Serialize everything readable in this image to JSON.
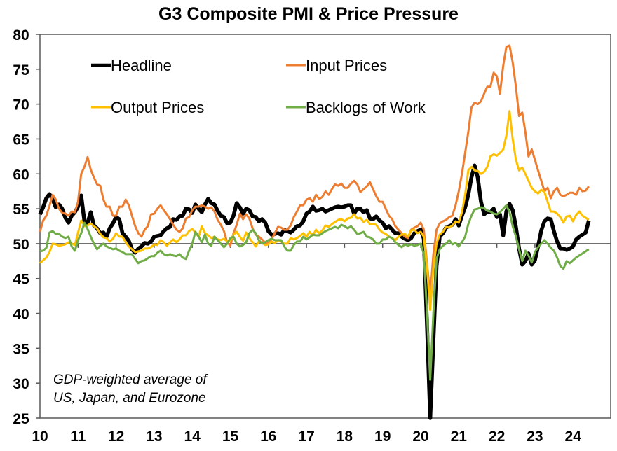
{
  "chart_data": {
    "type": "line",
    "title": "G3 Composite PMI & Price Pressure",
    "xlabel": "",
    "ylabel": "",
    "ylim": [
      25,
      80
    ],
    "yticks": [
      25,
      30,
      35,
      40,
      45,
      50,
      55,
      60,
      65,
      70,
      75,
      80
    ],
    "xlim": [
      2010.0,
      2025.0
    ],
    "xtick_labels": [
      "10",
      "11",
      "12",
      "13",
      "14",
      "15",
      "16",
      "17",
      "18",
      "19",
      "20",
      "21",
      "22",
      "23",
      "24"
    ],
    "reference_line": 50,
    "grid": false,
    "legend": {
      "placement": "top-left",
      "entries": [
        "Headline",
        "Input Prices",
        "Output Prices",
        "Backlogs of Work"
      ]
    },
    "annotation": [
      "GDP-weighted average of",
      "US, Japan, and Eurozone"
    ],
    "x": [
      2010.0,
      2010.083,
      2010.167,
      2010.25,
      2010.333,
      2010.417,
      2010.5,
      2010.583,
      2010.667,
      2010.75,
      2010.833,
      2010.917,
      2011.0,
      2011.083,
      2011.167,
      2011.25,
      2011.333,
      2011.417,
      2011.5,
      2011.583,
      2011.667,
      2011.75,
      2011.833,
      2011.917,
      2012.0,
      2012.083,
      2012.167,
      2012.25,
      2012.333,
      2012.417,
      2012.5,
      2012.583,
      2012.667,
      2012.75,
      2012.833,
      2012.917,
      2013.0,
      2013.083,
      2013.167,
      2013.25,
      2013.333,
      2013.417,
      2013.5,
      2013.583,
      2013.667,
      2013.75,
      2013.833,
      2013.917,
      2014.0,
      2014.083,
      2014.167,
      2014.25,
      2014.333,
      2014.417,
      2014.5,
      2014.583,
      2014.667,
      2014.75,
      2014.833,
      2014.917,
      2015.0,
      2015.083,
      2015.167,
      2015.25,
      2015.333,
      2015.417,
      2015.5,
      2015.583,
      2015.667,
      2015.75,
      2015.833,
      2015.917,
      2016.0,
      2016.083,
      2016.167,
      2016.25,
      2016.333,
      2016.417,
      2016.5,
      2016.583,
      2016.667,
      2016.75,
      2016.833,
      2016.917,
      2017.0,
      2017.083,
      2017.167,
      2017.25,
      2017.333,
      2017.417,
      2017.5,
      2017.583,
      2017.667,
      2017.75,
      2017.833,
      2017.917,
      2018.0,
      2018.083,
      2018.167,
      2018.25,
      2018.333,
      2018.417,
      2018.5,
      2018.583,
      2018.667,
      2018.75,
      2018.833,
      2018.917,
      2019.0,
      2019.083,
      2019.167,
      2019.25,
      2019.333,
      2019.417,
      2019.5,
      2019.583,
      2019.667,
      2019.75,
      2019.833,
      2019.917,
      2020.0,
      2020.083,
      2020.167,
      2020.25,
      2020.333,
      2020.417,
      2020.5,
      2020.583,
      2020.667,
      2020.75,
      2020.833,
      2020.917,
      2021.0,
      2021.083,
      2021.167,
      2021.25,
      2021.333,
      2021.417,
      2021.5,
      2021.583,
      2021.667,
      2021.75,
      2021.833,
      2021.917,
      2022.0,
      2022.083,
      2022.167,
      2022.25,
      2022.333,
      2022.417,
      2022.5,
      2022.583,
      2022.667,
      2022.75,
      2022.833,
      2022.917,
      2023.0,
      2023.083,
      2023.167,
      2023.25,
      2023.333,
      2023.417,
      2023.5,
      2023.583,
      2023.667,
      2023.75,
      2023.833,
      2023.917,
      2024.0,
      2024.083,
      2024.167,
      2024.25,
      2024.333,
      2024.417
    ],
    "series": [
      {
        "name": "Headline",
        "color": "#000000",
        "values": [
          54.2,
          55.2,
          56.5,
          57.1,
          56.3,
          55.2,
          55.6,
          55.0,
          53.7,
          53.0,
          54.0,
          54.5,
          55.3,
          56.9,
          53.2,
          53.0,
          54.5,
          52.6,
          52.2,
          51.5,
          51.6,
          51.0,
          52.2,
          52.9,
          53.8,
          53.5,
          51.5,
          51.0,
          50.4,
          49.2,
          48.7,
          49.3,
          49.6,
          50.1,
          50.0,
          50.3,
          51.0,
          51.1,
          51.2,
          51.8,
          52.2,
          52.4,
          53.5,
          53.4,
          53.9,
          54.0,
          55.0,
          54.9,
          54.4,
          55.6,
          55.0,
          54.5,
          55.6,
          56.4,
          55.8,
          55.6,
          54.7,
          54.0,
          53.8,
          52.9,
          53.0,
          54.0,
          55.8,
          55.2,
          54.3,
          55.0,
          54.8,
          53.9,
          53.8,
          53.2,
          53.5,
          53.0,
          51.8,
          51.3,
          51.4,
          51.5,
          51.3,
          52.0,
          51.8,
          51.6,
          52.0,
          52.5,
          52.6,
          53.2,
          54.3,
          54.6,
          55.3,
          54.7,
          54.8,
          55.0,
          54.6,
          54.8,
          55.0,
          55.2,
          55.3,
          55.2,
          55.3,
          55.5,
          55.5,
          54.3,
          55.0,
          55.0,
          54.5,
          54.8,
          53.6,
          53.5,
          53.9,
          53.3,
          53.0,
          52.2,
          52.5,
          52.0,
          51.5,
          51.5,
          51.0,
          50.7,
          50.5,
          50.8,
          51.5,
          51.8,
          52.0,
          50.7,
          38.0,
          25.0,
          36.0,
          46.8,
          51.0,
          51.5,
          52.3,
          52.5,
          52.7,
          53.5,
          52.6,
          54.0,
          55.2,
          57.0,
          59.5,
          61.2,
          59.5,
          56.0,
          54.2,
          54.6,
          54.5,
          55.0,
          53.8,
          54.2,
          51.2,
          54.6,
          55.7,
          54.8,
          52.4,
          49.3,
          47.0,
          47.5,
          48.6,
          47.0,
          47.6,
          49.6,
          51.9,
          53.2,
          53.6,
          53.5,
          51.8,
          50.3,
          49.3,
          49.3,
          49.1,
          49.3,
          49.6,
          50.6,
          51.0,
          51.3,
          51.6,
          53.3
        ]
      },
      {
        "name": "Input Prices",
        "color": "#ED7D31",
        "values": [
          51.7,
          53.3,
          54.0,
          55.4,
          57.0,
          56.3,
          55.0,
          54.4,
          54.3,
          54.0,
          54.6,
          54.5,
          56.0,
          60.0,
          61.0,
          62.4,
          60.6,
          59.5,
          58.5,
          58.3,
          56.3,
          55.3,
          55.3,
          54.0,
          54.0,
          55.3,
          55.3,
          56.3,
          55.5,
          54.0,
          52.5,
          51.5,
          51.0,
          52.0,
          52.5,
          54.2,
          54.3,
          55.0,
          55.5,
          54.8,
          54.2,
          53.5,
          52.7,
          52.0,
          51.7,
          52.2,
          53.6,
          53.8,
          54.8,
          55.3,
          55.3,
          55.5,
          55.3,
          55.0,
          55.2,
          54.6,
          53.4,
          52.7,
          51.8,
          50.2,
          49.7,
          51.5,
          52.7,
          54.3,
          53.5,
          54.2,
          53.6,
          52.2,
          51.3,
          51.0,
          50.6,
          50.1,
          50.0,
          50.6,
          51.5,
          52.4,
          52.3,
          52.0,
          52.0,
          52.6,
          53.8,
          54.6,
          55.5,
          55.5,
          56.3,
          56.5,
          56.0,
          57.0,
          56.4,
          56.7,
          57.5,
          57.0,
          57.8,
          58.5,
          58.3,
          58.6,
          58.0,
          58.0,
          58.6,
          59.0,
          58.5,
          57.4,
          57.8,
          58.2,
          58.8,
          57.8,
          56.8,
          56.0,
          56.0,
          55.0,
          54.0,
          53.5,
          52.5,
          52.0,
          51.5,
          51.0,
          50.8,
          52.0,
          52.3,
          52.5,
          53.0,
          52.0,
          47.0,
          42.5,
          48.5,
          52.0,
          52.9,
          53.2,
          53.4,
          53.8,
          54.0,
          55.5,
          57.5,
          60.0,
          63.0,
          66.0,
          69.5,
          70.2,
          70.0,
          70.4,
          71.5,
          72.5,
          72.5,
          74.5,
          74.0,
          71.5,
          75.5,
          78.2,
          78.4,
          76.0,
          72.5,
          68.3,
          68.8,
          66.0,
          62.5,
          63.5,
          62.0,
          60.5,
          59.0,
          57.5,
          58.0,
          56.5,
          57.5,
          58.0,
          57.0,
          56.8,
          57.0,
          57.3,
          57.3,
          57.0,
          58.0,
          57.5,
          57.6,
          58.2
        ]
      },
      {
        "name": "Output Prices",
        "color": "#FFC000",
        "values": [
          47.2,
          47.6,
          48.0,
          48.8,
          50.0,
          49.9,
          49.7,
          49.8,
          49.9,
          50.2,
          50.0,
          49.8,
          51.6,
          53.3,
          52.5,
          52.6,
          52.9,
          52.5,
          52.2,
          51.4,
          50.9,
          50.8,
          50.3,
          50.7,
          51.5,
          51.0,
          51.0,
          50.2,
          49.6,
          49.2,
          48.8,
          48.9,
          49.0,
          49.3,
          49.3,
          49.5,
          49.9,
          49.8,
          50.5,
          50.2,
          49.7,
          50.2,
          50.6,
          50.2,
          50.6,
          51.2,
          51.2,
          51.8,
          52.1,
          51.6,
          51.0,
          52.5,
          51.5,
          51.2,
          50.8,
          51.0,
          50.6,
          50.5,
          50.7,
          50.3,
          50.4,
          51.3,
          51.7,
          51.0,
          50.4,
          51.6,
          50.8,
          50.2,
          49.6,
          50.3,
          50.1,
          49.8,
          49.9,
          50.3,
          50.1,
          50.5,
          50.3,
          50.0,
          50.0,
          50.8,
          50.6,
          50.8,
          51.1,
          51.5,
          51.0,
          51.7,
          51.2,
          52.0,
          51.5,
          51.9,
          52.6,
          52.4,
          52.8,
          53.1,
          53.4,
          53.5,
          53.2,
          53.6,
          53.7,
          54.2,
          53.6,
          53.7,
          53.1,
          53.4,
          52.8,
          52.8,
          52.7,
          52.0,
          51.6,
          51.4,
          51.0,
          50.8,
          50.5,
          51.0,
          51.3,
          51.4,
          51.0,
          51.9,
          52.0,
          51.5,
          51.7,
          51.0,
          46.5,
          40.5,
          46.5,
          50.0,
          51.3,
          51.7,
          52.4,
          52.3,
          52.6,
          53.2,
          53.0,
          54.5,
          57.0,
          60.5,
          61.0,
          60.5,
          60.4,
          60.0,
          60.3,
          61.0,
          62.5,
          62.8,
          62.6,
          63.0,
          63.5,
          65.5,
          69.0,
          65.0,
          62.0,
          60.5,
          60.9,
          60.0,
          59.0,
          58.0,
          57.5,
          57.2,
          57.7,
          57.4,
          56.0,
          54.6,
          54.6,
          54.3,
          53.8,
          53.0,
          53.9,
          54.0,
          53.2,
          54.1,
          54.6,
          54.0,
          53.7,
          53.4
        ]
      },
      {
        "name": "Backlogs of Work",
        "color": "#70AD47",
        "values": [
          48.9,
          49.0,
          49.4,
          51.6,
          51.8,
          51.4,
          51.4,
          51.0,
          50.8,
          51.0,
          49.6,
          49.0,
          50.5,
          51.5,
          53.0,
          52.1,
          51.0,
          50.0,
          49.2,
          49.7,
          50.0,
          49.6,
          49.4,
          49.2,
          49.3,
          49.0,
          48.8,
          48.5,
          48.5,
          48.5,
          47.8,
          47.2,
          47.5,
          47.6,
          47.9,
          48.2,
          48.2,
          48.7,
          49.0,
          48.5,
          48.3,
          48.5,
          48.3,
          48.2,
          48.5,
          48.0,
          47.8,
          49.0,
          50.0,
          51.7,
          51.0,
          50.2,
          51.3,
          50.0,
          49.7,
          51.0,
          50.5,
          50.0,
          49.5,
          50.0,
          50.8,
          51.0,
          50.0,
          49.6,
          49.8,
          50.2,
          51.5,
          52.0,
          51.5,
          50.5,
          50.0,
          50.2,
          50.5,
          50.7,
          50.5,
          50.5,
          50.5,
          49.6,
          49.0,
          49.0,
          49.8,
          50.3,
          50.3,
          51.0,
          50.6,
          50.9,
          51.3,
          51.2,
          51.2,
          51.5,
          51.8,
          52.0,
          52.2,
          52.4,
          52.2,
          52.7,
          52.5,
          52.2,
          52.5,
          52.0,
          51.4,
          51.5,
          51.7,
          51.0,
          50.9,
          50.6,
          50.0,
          50.0,
          50.6,
          50.6,
          51.0,
          50.8,
          50.2,
          49.8,
          49.5,
          49.9,
          49.7,
          49.9,
          49.7,
          49.8,
          50.0,
          48.5,
          40.0,
          30.5,
          40.0,
          47.8,
          49.2,
          49.7,
          50.0,
          50.5,
          49.9,
          50.1,
          49.6,
          50.2,
          51.0,
          52.8,
          54.0,
          54.9,
          55.0,
          55.2,
          55.1,
          54.7,
          54.6,
          54.3,
          54.2,
          54.5,
          55.0,
          55.5,
          54.5,
          52.5,
          51.0,
          49.2,
          47.5,
          49.0,
          48.3,
          47.3,
          48.8,
          49.5,
          50.0,
          50.5,
          50.0,
          49.4,
          49.0,
          48.0,
          46.8,
          46.4,
          47.5,
          47.2,
          47.6,
          48.0,
          48.3,
          48.6,
          48.9,
          49.2
        ]
      }
    ]
  }
}
